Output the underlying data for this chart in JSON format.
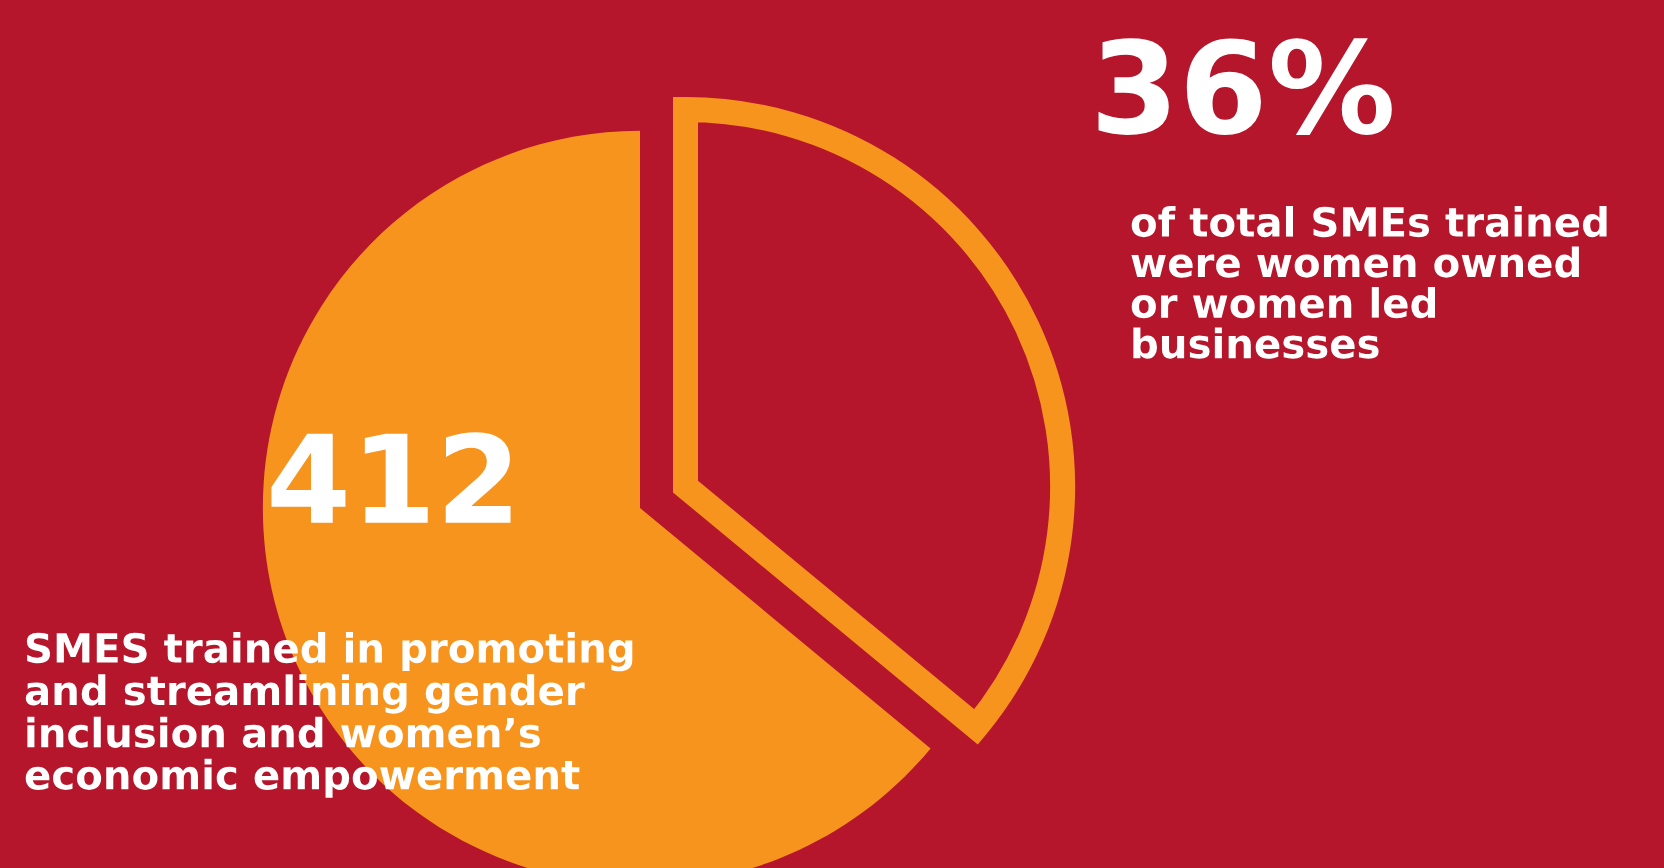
{
  "chart_data": {
    "type": "pie",
    "categories": [
      null,
      null
    ],
    "values": [
      36,
      64
    ],
    "colors": [
      "#f7941d",
      "#f7941d"
    ],
    "annotations": [
      "36%",
      "of total SMEs trained\nwere women owned\nor women led\nbusinesses",
      "412",
      "SMES trained in promoting\nand streamlining gender\ninclusion and women’s\neconomic empowerment"
    ]
  }
}
